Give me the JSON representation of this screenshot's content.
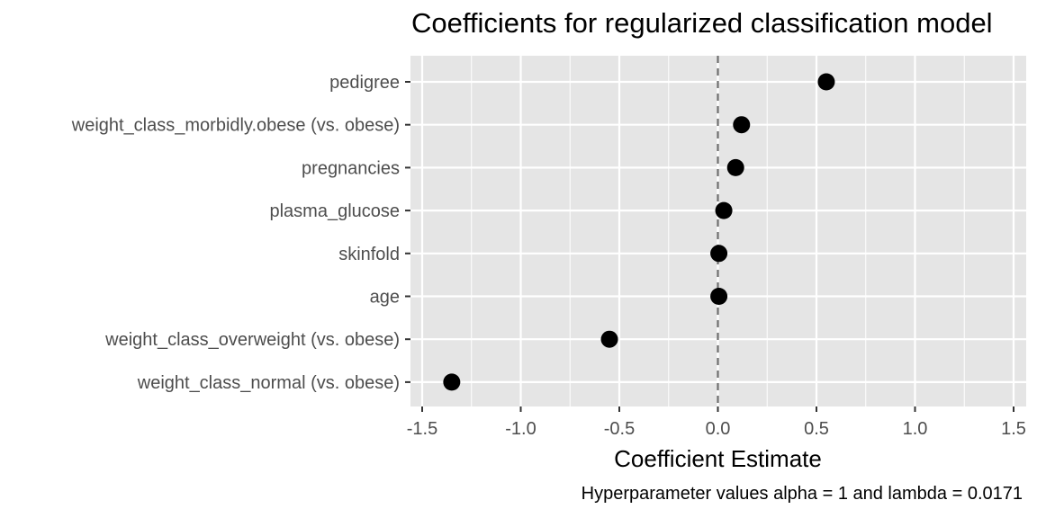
{
  "chart_data": {
    "type": "scatter",
    "title": "Coefficients for regularized classification model",
    "xlabel": "Coefficient Estimate",
    "ylabel": "",
    "caption": "Hyperparameter values alpha = 1 and lambda = 0.0171",
    "xlim": [
      -1.5,
      1.5
    ],
    "xticks": [
      -1.5,
      -1.0,
      -0.5,
      0.0,
      0.5,
      1.0,
      1.5
    ],
    "xtick_labels": [
      "-1.5",
      "-1.0",
      "-0.5",
      "0.0",
      "0.5",
      "1.0",
      "1.5"
    ],
    "reference_line": 0,
    "grid": true,
    "categories": [
      "pedigree",
      "weight_class_morbidly.obese (vs. obese)",
      "pregnancies",
      "plasma_glucose",
      "skinfold",
      "age",
      "weight_class_overweight (vs. obese)",
      "weight_class_normal (vs. obese)"
    ],
    "values": [
      0.55,
      0.12,
      0.09,
      0.03,
      0.005,
      0.005,
      -0.55,
      -1.35
    ],
    "colors": {
      "panel": "#e5e5e5",
      "grid": "#ffffff",
      "point": "#000000",
      "reference": "#6e6e6e",
      "tick_text": "#4d4d4d"
    }
  }
}
